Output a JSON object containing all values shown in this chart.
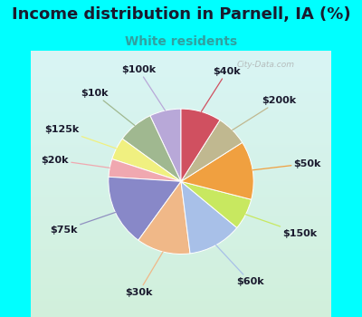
{
  "title": "Income distribution in Parnell, IA (%)",
  "subtitle": "White residents",
  "subtitle_color": "#30a0a0",
  "title_color": "#1a1a2e",
  "background_color": "#00ffff",
  "chart_bg_top": "#d8f0f0",
  "chart_bg_bottom": "#d0ecd8",
  "labels": [
    "$100k",
    "$10k",
    "$125k",
    "$20k",
    "$75k",
    "$30k",
    "$60k",
    "$150k",
    "$50k",
    "$200k",
    "$40k"
  ],
  "sizes": [
    7,
    8,
    5,
    4,
    16,
    12,
    12,
    7,
    13,
    7,
    9
  ],
  "colors": [
    "#b8a8d8",
    "#a0b890",
    "#f0f080",
    "#f0a8b0",
    "#8888c8",
    "#f0b888",
    "#a8c0e8",
    "#c8e860",
    "#f0a040",
    "#c0b890",
    "#d05060"
  ],
  "line_colors": [
    "#b8a8d8",
    "#a0b890",
    "#f0f080",
    "#f0a8b0",
    "#9090c0",
    "#f0b888",
    "#a8c0e8",
    "#c8e860",
    "#f0a040",
    "#c0b890",
    "#d05060"
  ],
  "startangle": 90,
  "title_fontsize": 13,
  "subtitle_fontsize": 10,
  "label_fontsize": 8
}
